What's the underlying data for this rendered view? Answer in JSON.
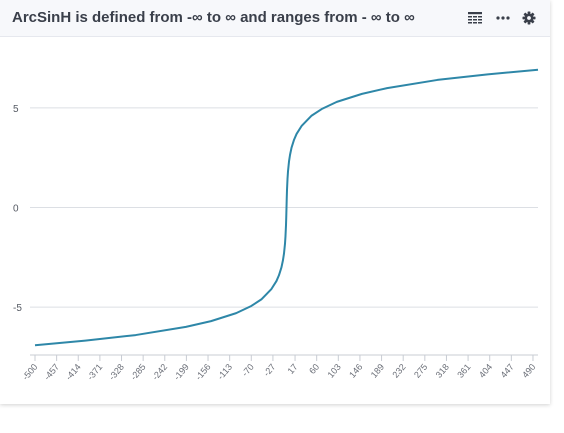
{
  "header": {
    "title": "ArcSinH is defined from -∞ to ∞ and ranges from - ∞ to ∞",
    "icons": [
      "table-icon",
      "more-icon",
      "gear-icon"
    ]
  },
  "chart_data": {
    "type": "line",
    "title": "ArcSinH is defined from -∞ to ∞ and ranges from - ∞ to ∞",
    "xlabel": "",
    "ylabel": "",
    "x_ticks": [
      "-500",
      "-457",
      "-414",
      "-371",
      "-328",
      "-285",
      "-242",
      "-199",
      "-156",
      "-113",
      "-70",
      "-27",
      "17",
      "60",
      "103",
      "146",
      "189",
      "232",
      "275",
      "318",
      "361",
      "404",
      "447",
      "490"
    ],
    "y_ticks": [
      5,
      0,
      -5
    ],
    "xlim": [
      -500,
      500
    ],
    "ylim": [
      -7.4,
      7.4
    ],
    "grid": "horizontal",
    "line_color": "#2e87a8",
    "series": [
      {
        "x": [
          -500,
          -400,
          -300,
          -200,
          -150,
          -100,
          -70,
          -50,
          -30,
          -20,
          -15,
          -10,
          -7,
          -5,
          -3,
          -2,
          -1,
          -0.5,
          0,
          0.5,
          1,
          2,
          3,
          5,
          7,
          10,
          15,
          20,
          30,
          50,
          70,
          100,
          150,
          200,
          300,
          400,
          500
        ],
        "y": [
          -6.91,
          -6.68,
          -6.4,
          -5.99,
          -5.7,
          -5.3,
          -4.94,
          -4.61,
          -4.09,
          -3.69,
          -3.4,
          -3.0,
          -2.64,
          -2.31,
          -1.82,
          -1.44,
          -0.88,
          -0.48,
          0,
          0.48,
          0.88,
          1.44,
          1.82,
          2.31,
          2.64,
          3.0,
          3.4,
          3.69,
          4.09,
          4.61,
          4.94,
          5.3,
          5.7,
          5.99,
          6.4,
          6.68,
          6.91
        ]
      }
    ]
  }
}
